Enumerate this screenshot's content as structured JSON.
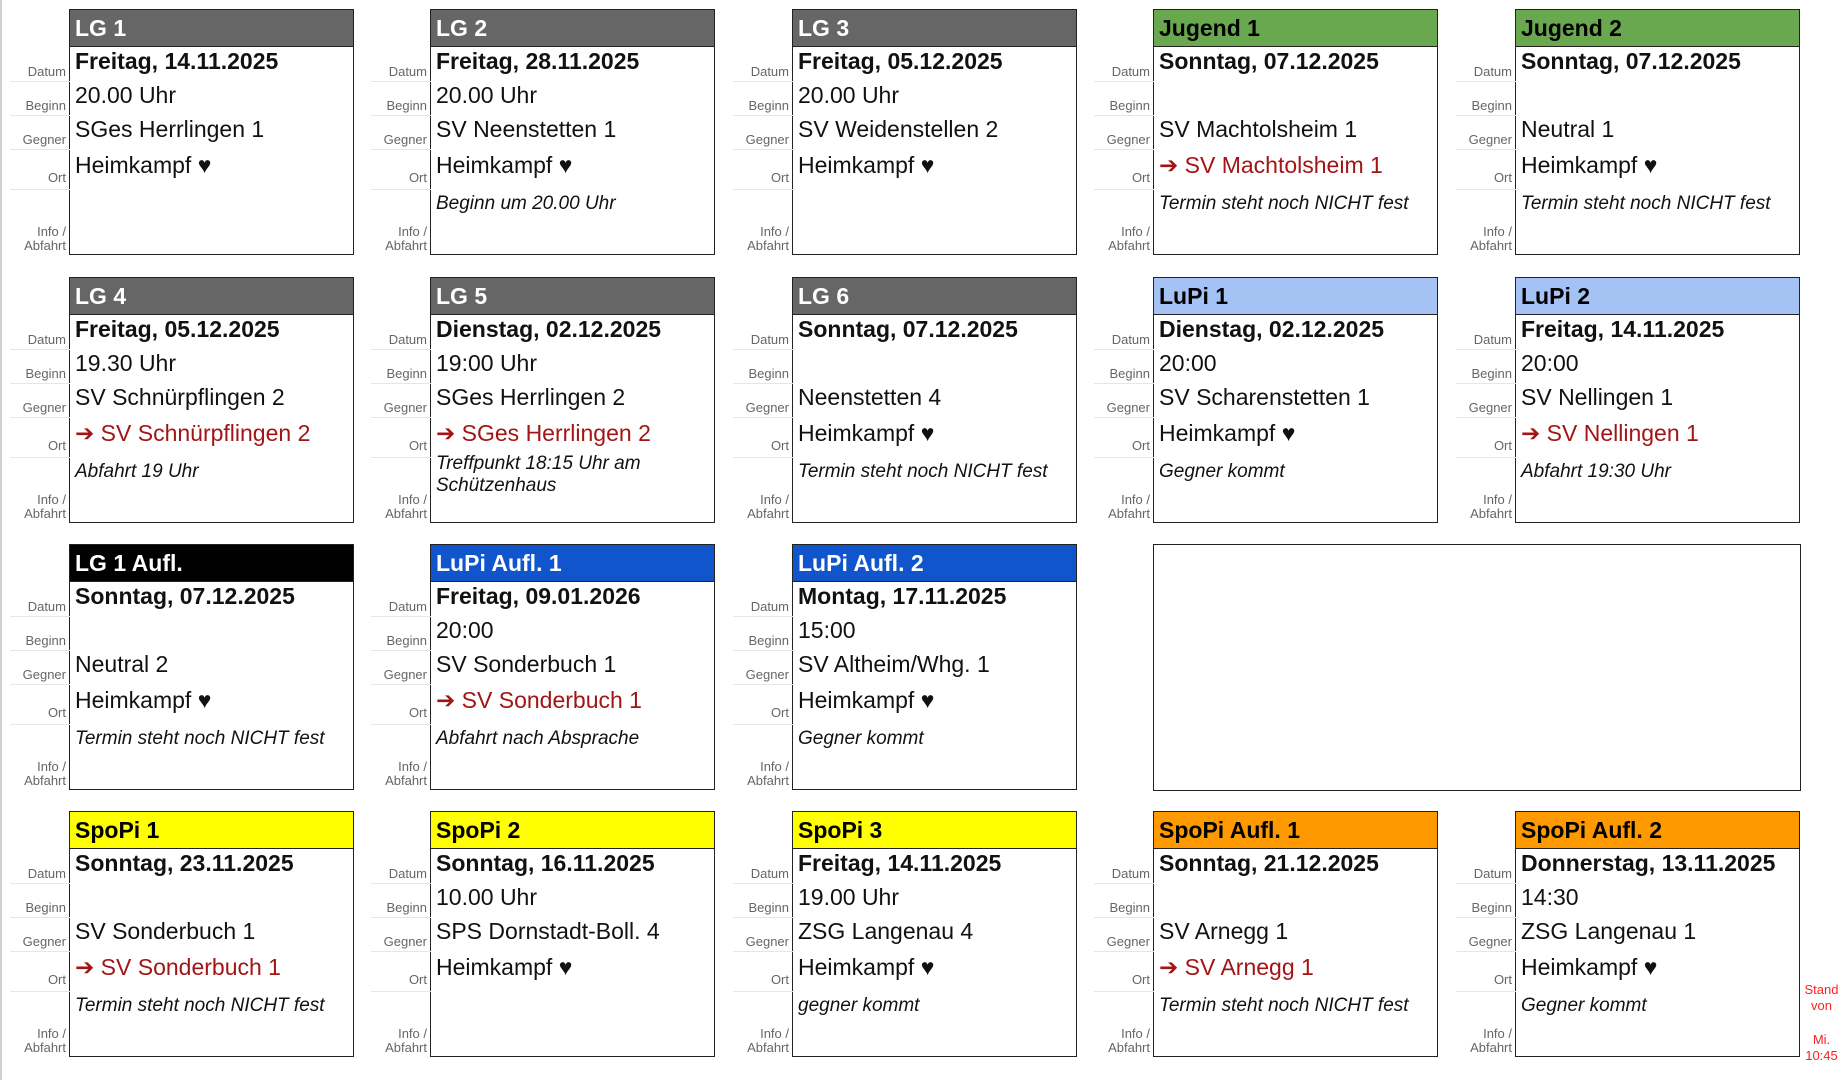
{
  "labels": {
    "datum": "Datum",
    "beginn": "Beginn",
    "gegner": "Gegner",
    "ort": "Ort",
    "info": "Info /",
    "abfahrt": "Abfahrt"
  },
  "colors": {
    "gray": "#666666",
    "green": "#6aa84f",
    "lightblue": "#a4c2f4",
    "black": "#000000",
    "blue": "#1155cc",
    "yellow": "#ffff00",
    "orange": "#ff9900",
    "away": "#a31515",
    "stand": "#ff2020"
  },
  "cards": [
    {
      "team": "LG 1",
      "color": "gray",
      "text": "white",
      "datum": "Freitag, 14.11.2025",
      "beginn": "20.00 Uhr",
      "gegner": "SGes Herrlingen 1",
      "ort": "Heimkampf ♥",
      "away": false,
      "info": ""
    },
    {
      "team": "LG 2",
      "color": "gray",
      "text": "white",
      "datum": "Freitag, 28.11.2025",
      "beginn": "20.00 Uhr",
      "gegner": "SV Neenstetten 1",
      "ort": "Heimkampf ♥",
      "away": false,
      "info": "Beginn um 20.00 Uhr"
    },
    {
      "team": "LG 3",
      "color": "gray",
      "text": "white",
      "datum": "Freitag, 05.12.2025",
      "beginn": "20.00 Uhr",
      "gegner": "SV Weidenstellen 2",
      "ort": "Heimkampf ♥",
      "away": false,
      "info": ""
    },
    {
      "team": "Jugend 1",
      "color": "green",
      "text": "black",
      "datum": "Sonntag, 07.12.2025",
      "beginn": "",
      "gegner": "SV Machtolsheim 1",
      "ort": "➔ SV Machtolsheim 1",
      "away": true,
      "info": "Termin steht noch NICHT fest"
    },
    {
      "team": "Jugend 2",
      "color": "green",
      "text": "black",
      "datum": "Sonntag, 07.12.2025",
      "beginn": "",
      "gegner": "Neutral 1",
      "ort": "Heimkampf ♥",
      "away": false,
      "info": "Termin steht noch NICHT fest"
    },
    {
      "team": "LG 4",
      "color": "gray",
      "text": "white",
      "datum": "Freitag, 05.12.2025",
      "beginn": "19.30 Uhr",
      "gegner": "SV Schnürpflingen 2",
      "ort": "➔ SV Schnürpflingen 2",
      "away": true,
      "info": "Abfahrt 19 Uhr"
    },
    {
      "team": "LG 5",
      "color": "gray",
      "text": "white",
      "datum": "Dienstag, 02.12.2025",
      "beginn": "19:00 Uhr",
      "gegner": "SGes Herrlingen 2",
      "ort": "➔ SGes Herrlingen 2",
      "away": true,
      "info": "Treffpunkt 18:15 Uhr am Schützenhaus"
    },
    {
      "team": "LG 6",
      "color": "gray",
      "text": "white",
      "datum": "Sonntag, 07.12.2025",
      "beginn": "",
      "gegner": "Neenstetten 4",
      "ort": "Heimkampf ♥",
      "away": false,
      "info": "Termin steht noch NICHT fest"
    },
    {
      "team": "LuPi 1",
      "color": "lightblue",
      "text": "black",
      "datum": "Dienstag, 02.12.2025",
      "beginn": "20:00",
      "gegner": "SV Scharenstetten 1",
      "ort": "Heimkampf ♥",
      "away": false,
      "info": "Gegner kommt"
    },
    {
      "team": "LuPi 2",
      "color": "lightblue",
      "text": "black",
      "datum": "Freitag, 14.11.2025",
      "beginn": "20:00",
      "gegner": "SV Nellingen 1",
      "ort": "➔ SV Nellingen 1",
      "away": true,
      "info": "Abfahrt 19:30 Uhr"
    },
    {
      "team": "LG 1 Aufl.",
      "color": "black",
      "text": "white",
      "datum": "Sonntag, 07.12.2025",
      "beginn": "",
      "gegner": "Neutral 2",
      "ort": "Heimkampf ♥",
      "away": false,
      "info": "Termin steht noch NICHT fest"
    },
    {
      "team": "LuPi Aufl. 1",
      "color": "blue",
      "text": "white",
      "datum": "Freitag, 09.01.2026",
      "beginn": "20:00",
      "gegner": "SV Sonderbuch 1",
      "ort": "➔ SV Sonderbuch 1",
      "away": true,
      "info": "Abfahrt nach Absprache"
    },
    {
      "team": "LuPi Aufl. 2",
      "color": "blue",
      "text": "white",
      "datum": "Montag, 17.11.2025",
      "beginn": "15:00",
      "gegner": "SV Altheim/Whg. 1",
      "ort": "Heimkampf ♥",
      "away": false,
      "info": "Gegner kommt"
    },
    {
      "team": "SpoPi 1",
      "color": "yellow",
      "text": "black",
      "datum": "Sonntag, 23.11.2025",
      "beginn": "",
      "gegner": "SV Sonderbuch 1",
      "ort": "➔ SV Sonderbuch 1",
      "away": true,
      "info": "Termin steht noch NICHT fest"
    },
    {
      "team": "SpoPi 2",
      "color": "yellow",
      "text": "black",
      "datum": "Sonntag, 16.11.2025",
      "beginn": "10.00 Uhr",
      "gegner": "SPS Dornstadt-Boll. 4",
      "ort": "Heimkampf ♥",
      "away": false,
      "info": ""
    },
    {
      "team": "SpoPi 3",
      "color": "yellow",
      "text": "black",
      "datum": "Freitag, 14.11.2025",
      "beginn": "19.00 Uhr",
      "gegner": "ZSG Langenau 4",
      "ort": "Heimkampf ♥",
      "away": false,
      "info": "gegner kommt"
    },
    {
      "team": "SpoPi Aufl. 1",
      "color": "orange",
      "text": "black",
      "datum": "Sonntag, 21.12.2025",
      "beginn": "",
      "gegner": "SV Arnegg 1",
      "ort": "➔ SV Arnegg 1",
      "away": true,
      "info": "Termin steht noch NICHT fest"
    },
    {
      "team": "SpoPi Aufl. 2",
      "color": "orange",
      "text": "black",
      "datum": "Donnerstag, 13.11.2025",
      "beginn": "14:30",
      "gegner": "ZSG Langenau 1",
      "ort": "Heimkampf ♥",
      "away": false,
      "info": "Gegner kommt"
    }
  ],
  "stand": {
    "line1": "Stand",
    "line2": "von",
    "line3": "Mi.",
    "line4": "10:45"
  }
}
